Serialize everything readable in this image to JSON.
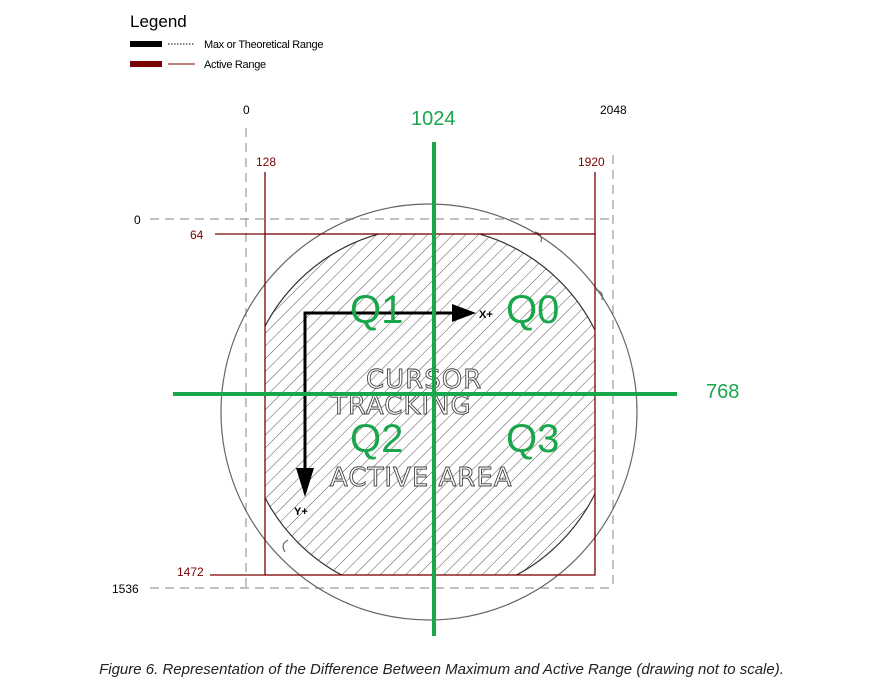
{
  "legend": {
    "title": "Legend",
    "items": [
      {
        "label": "Max or Theoretical Range",
        "color": "#000000"
      },
      {
        "label": "Active Range",
        "color": "#7a0000"
      }
    ]
  },
  "max_range": {
    "x_min": "0",
    "x_max": "2048",
    "y_min": "0",
    "y_max": "1536"
  },
  "active_range": {
    "x_min": "128",
    "x_max": "1920",
    "y_min": "64",
    "y_max": "1472"
  },
  "center": {
    "x": "1024",
    "y": "768"
  },
  "quadrants": {
    "q0": "Q0",
    "q1": "Q1",
    "q2": "Q2",
    "q3": "Q3"
  },
  "area_text": {
    "line1": "CURSOR",
    "line2": "TRACKING",
    "line3": "ACTIVE AREA"
  },
  "axes": {
    "x": "X+",
    "y": "Y+"
  },
  "colors": {
    "green": "#1aa64b",
    "dark_red": "#7a0000",
    "dash": "#999999"
  },
  "caption": "Figure 6. Representation of the Difference Between Maximum and Active Range (drawing not to scale)."
}
